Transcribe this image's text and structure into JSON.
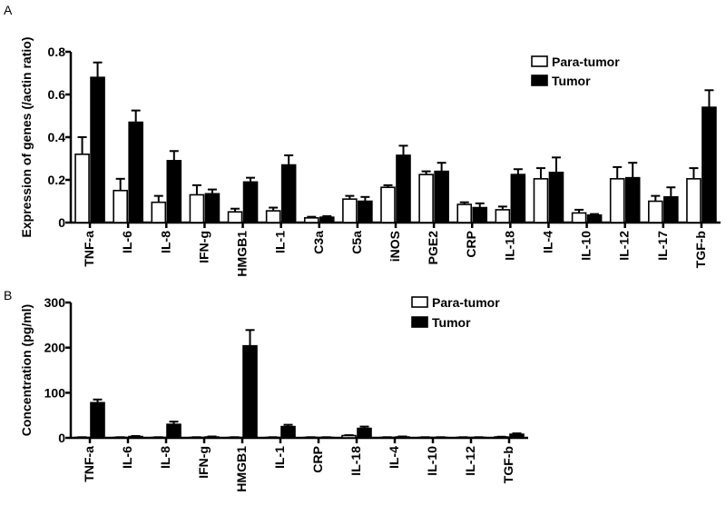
{
  "chart_data": [
    {
      "panel": "A",
      "type": "bar",
      "ylabel": "Expression of genes (/actin ratio)",
      "ylim": [
        0,
        0.8
      ],
      "yticks": [
        "0",
        "0.2",
        "0.4",
        "0.6",
        "0.8"
      ],
      "ytick_values": [
        0,
        0.2,
        0.4,
        0.6,
        0.8
      ],
      "categories": [
        "TNF-a",
        "IL-6",
        "IL-8",
        "IFN-g",
        "HMGB1",
        "IL-1",
        "C3a",
        "C5a",
        "iNOS",
        "PGE2",
        "CRP",
        "IL-18",
        "IL-4",
        "IL-10",
        "IL-12",
        "IL-17",
        "TGF-b"
      ],
      "legend_position": "top-right",
      "series": [
        {
          "name": "Para-tumor",
          "color": "#ffffff",
          "values": [
            0.32,
            0.15,
            0.095,
            0.13,
            0.05,
            0.055,
            0.022,
            0.11,
            0.165,
            0.225,
            0.085,
            0.06,
            0.205,
            0.045,
            0.205,
            0.1,
            0.205
          ],
          "errors": [
            0.08,
            0.055,
            0.03,
            0.045,
            0.015,
            0.015,
            0.005,
            0.015,
            0.01,
            0.015,
            0.01,
            0.015,
            0.05,
            0.015,
            0.055,
            0.025,
            0.05
          ]
        },
        {
          "name": "Tumor",
          "color": "#000000",
          "values": [
            0.68,
            0.47,
            0.29,
            0.135,
            0.19,
            0.27,
            0.025,
            0.1,
            0.315,
            0.24,
            0.07,
            0.225,
            0.235,
            0.035,
            0.21,
            0.12,
            0.54
          ],
          "errors": [
            0.07,
            0.055,
            0.045,
            0.02,
            0.02,
            0.045,
            0.005,
            0.02,
            0.045,
            0.04,
            0.02,
            0.025,
            0.07,
            0.005,
            0.07,
            0.045,
            0.08
          ]
        }
      ]
    },
    {
      "panel": "B",
      "type": "bar",
      "ylabel": "Concentration (pg/ml)",
      "ylim": [
        0,
        300
      ],
      "yticks": [
        "0",
        "100",
        "200",
        "300"
      ],
      "ytick_values": [
        0,
        100,
        200,
        300
      ],
      "categories": [
        "TNF-a",
        "IL-6",
        "IL-8",
        "IFN-g",
        "HMGB1",
        "IL-1",
        "CRP",
        "IL-18",
        "IL-4",
        "IL-10",
        "IL-12",
        "TGF-b"
      ],
      "legend_position": "top-right",
      "series": [
        {
          "name": "Para-tumor",
          "color": "#ffffff",
          "values": [
            1,
            1,
            1,
            1,
            1,
            1,
            1,
            5,
            1,
            1,
            1,
            2
          ],
          "errors": [
            0.5,
            0.5,
            0.5,
            0.5,
            0.5,
            0.5,
            0.5,
            1,
            0.5,
            0.5,
            0.5,
            0.5
          ]
        },
        {
          "name": "Tumor",
          "color": "#000000",
          "values": [
            78,
            3,
            30,
            2,
            204,
            25,
            1,
            21,
            2,
            1,
            1,
            8
          ],
          "errors": [
            7,
            1,
            6,
            1,
            35,
            4,
            0.5,
            4,
            1,
            0.5,
            0.5,
            2
          ]
        }
      ]
    }
  ]
}
